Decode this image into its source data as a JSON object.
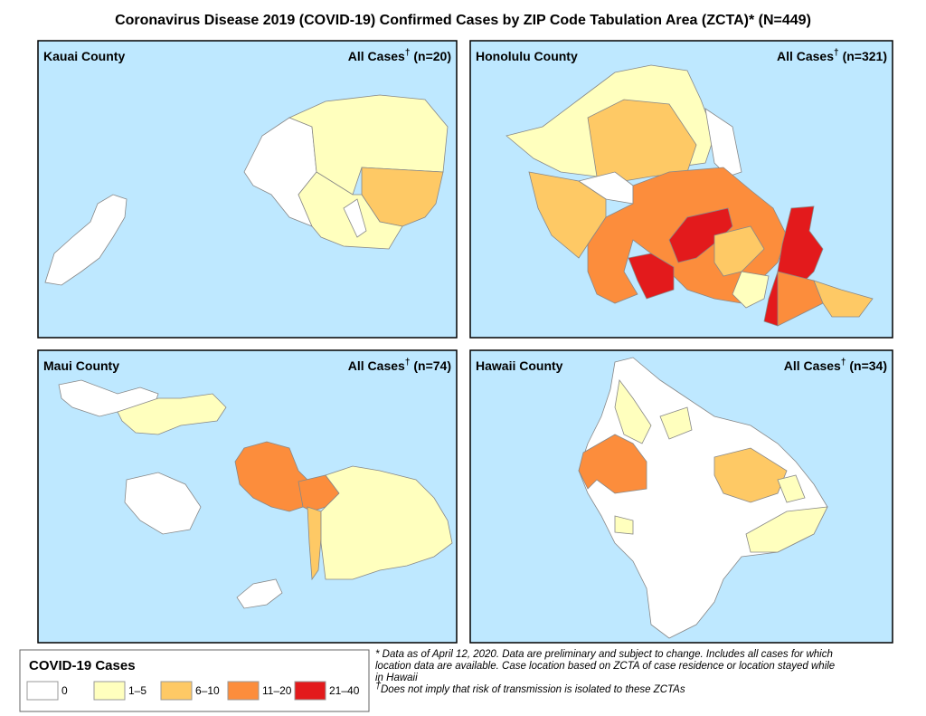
{
  "title": "Coronavirus Disease 2019 (COVID-19) Confirmed Cases by ZIP Code Tabulation Area (ZCTA)* (N=449)",
  "panels": [
    {
      "county": "Kauai County",
      "cases_label": "All Cases",
      "dagger": "†",
      "n": "(n=20)"
    },
    {
      "county": "Honolulu County",
      "cases_label": "All Cases",
      "dagger": "†",
      "n": "(n=321)"
    },
    {
      "county": "Maui County",
      "cases_label": "All Cases",
      "dagger": "†",
      "n": "(n=74)"
    },
    {
      "county": "Hawaii County",
      "cases_label": "All Cases",
      "dagger": "†",
      "n": "(n=34)"
    }
  ],
  "legend": {
    "title": "COVID-19 Cases",
    "items": [
      {
        "label": "0",
        "color": "#ffffff"
      },
      {
        "label": "1–5",
        "color": "#ffffbe"
      },
      {
        "label": "6–10",
        "color": "#fec965"
      },
      {
        "label": "11–20",
        "color": "#fc8d3c"
      },
      {
        "label": "21–40",
        "color": "#e31a1c"
      }
    ]
  },
  "footnotes": {
    "note1_lines": [
      "* Data as of April 12, 2020. Data are preliminary and subject to change. Includes all cases for which",
      " location data are available. Case location based on ZCTA of case residence or location stayed while",
      "in Hawaii"
    ],
    "note2_mark": "†",
    "note2": "Does not imply that risk of transmission is isolated to these ZCTAs"
  }
}
